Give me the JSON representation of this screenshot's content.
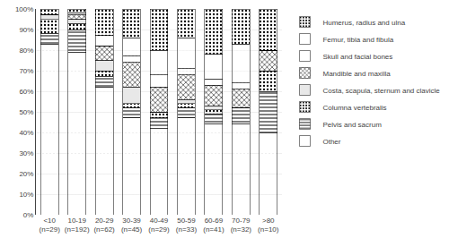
{
  "chart_data": {
    "type": "bar",
    "stacked": true,
    "categories": [
      "<10\n(n=29)",
      "10-19\n(n=192)",
      "20-29\n(n=62)",
      "30-39\n(n=45)",
      "40-49\n(n=29)",
      "50-59\n(n=33)",
      "60-69\n(n=41)",
      "70-79\n(n=32)",
      ">80\n(n=10)"
    ],
    "series": [
      {
        "name": "Other",
        "color": "#484848",
        "values": [
          83,
          79,
          62,
          47,
          42,
          47,
          44,
          44,
          40
        ]
      },
      {
        "name": "Pelvis and sacrum",
        "color": "#f5f5f5",
        "values": [
          5,
          11,
          5,
          5,
          5,
          5,
          5,
          8,
          20
        ]
      },
      {
        "name": "Columna vertebralis",
        "color": "#d0d0d0",
        "values": [
          7,
          3,
          3,
          2,
          3,
          2,
          2,
          0,
          10
        ]
      },
      {
        "name": "Costa, scapula, sternum and clavicle",
        "color": "#e8e8e8",
        "values": [
          2,
          2,
          5,
          8,
          0,
          2,
          2,
          0,
          0
        ]
      },
      {
        "name": "Mandible and maxilla",
        "color": "#c0c0c0",
        "values": [
          0,
          2,
          7,
          12,
          12,
          12,
          10,
          9,
          10
        ]
      },
      {
        "name": "Skull and facial bones",
        "color": "#181818",
        "values": [
          0,
          0,
          0,
          3,
          6,
          3,
          3,
          3,
          0
        ]
      },
      {
        "name": "Femur, tibia and fibula",
        "color": "#505050",
        "values": [
          0,
          1,
          5,
          9,
          12,
          15,
          12,
          19,
          0
        ]
      },
      {
        "name": "Humerus, radius and ulna",
        "color": "#a8a8a8",
        "values": [
          3,
          2,
          13,
          14,
          20,
          14,
          22,
          17,
          20
        ]
      }
    ],
    "ylim": [
      0,
      100
    ],
    "yticks": [
      {
        "value": 0,
        "label": "0%"
      },
      {
        "value": 10,
        "label": "10%"
      },
      {
        "value": 20,
        "label": "20%"
      },
      {
        "value": 30,
        "label": "30%"
      },
      {
        "value": 40,
        "label": "40%"
      },
      {
        "value": 50,
        "label": "50%"
      },
      {
        "value": 60,
        "label": "60%"
      },
      {
        "value": 70,
        "label": "70%"
      },
      {
        "value": 80,
        "label": "80%"
      },
      {
        "value": 90,
        "label": "90%"
      },
      {
        "value": 100,
        "label": "100%"
      }
    ],
    "grid": true,
    "legend": "right"
  }
}
